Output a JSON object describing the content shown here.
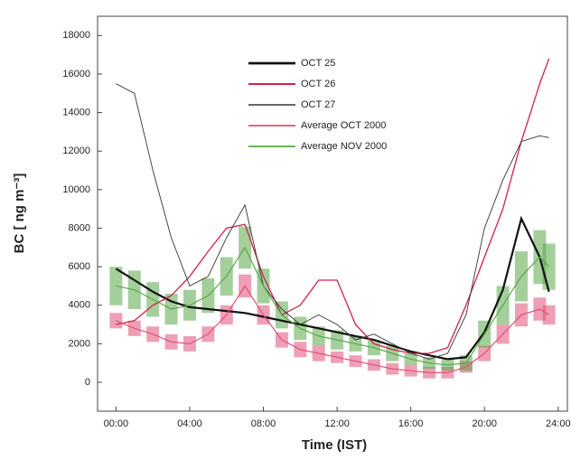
{
  "chart_data": {
    "type": "line",
    "x_label": "Time (IST)",
    "y_label": "BC [ ng m⁻³]",
    "x": [
      0,
      1,
      2,
      3,
      4,
      5,
      6,
      7,
      8,
      9,
      10,
      11,
      12,
      13,
      14,
      15,
      16,
      17,
      18,
      19,
      20,
      21,
      22,
      23,
      23.5
    ],
    "xlim": [
      -1,
      24.5
    ],
    "ylim": [
      -1500,
      19000
    ],
    "xticks": [
      {
        "value": 0,
        "label": "00:00"
      },
      {
        "value": 4,
        "label": "04:00"
      },
      {
        "value": 8,
        "label": "08:00"
      },
      {
        "value": 12,
        "label": "12:00"
      },
      {
        "value": 16,
        "label": "16:00"
      },
      {
        "value": 20,
        "label": "20:00"
      },
      {
        "value": 24,
        "label": "24:00"
      }
    ],
    "yticks": [
      0,
      2000,
      4000,
      6000,
      8000,
      10000,
      12000,
      14000,
      16000,
      18000
    ],
    "legend": "top-center",
    "series": [
      {
        "name": "OCT 25",
        "color": "#111111",
        "width": 2.2,
        "values": [
          5900,
          5300,
          4700,
          4200,
          3900,
          3800,
          3700,
          3600,
          3400,
          3200,
          3000,
          2800,
          2600,
          2400,
          2200,
          1900,
          1600,
          1400,
          1200,
          1300,
          2600,
          4800,
          8500,
          6500,
          4700
        ]
      },
      {
        "name": "OCT 26",
        "color": "#d0204a",
        "width": 1.3,
        "values": [
          3000,
          3200,
          4000,
          4500,
          5500,
          6800,
          8000,
          8200,
          5500,
          3500,
          4000,
          5300,
          5300,
          3000,
          2000,
          1700,
          1500,
          1500,
          1800,
          4000,
          6500,
          9000,
          12500,
          15500,
          16800
        ]
      },
      {
        "name": "OCT 27",
        "color": "#333333",
        "width": 0.9,
        "values": [
          15500,
          15000,
          11000,
          7500,
          5000,
          5500,
          7500,
          9200,
          5000,
          3800,
          3000,
          3500,
          3000,
          2200,
          2500,
          2000,
          1500,
          1200,
          1500,
          3500,
          8000,
          10500,
          12500,
          12800,
          12700
        ]
      },
      {
        "name": "Average OCT 2000",
        "color": "#e0507a",
        "width": 1.2,
        "values": [
          3200,
          2800,
          2500,
          2100,
          2000,
          2500,
          3500,
          5000,
          3500,
          2200,
          1700,
          1500,
          1300,
          1100,
          900,
          700,
          600,
          500,
          500,
          800,
          1500,
          2500,
          3500,
          3800,
          3500
        ],
        "errors": [
          400,
          400,
          400,
          400,
          400,
          400,
          500,
          600,
          500,
          400,
          400,
          400,
          300,
          300,
          300,
          300,
          300,
          300,
          300,
          300,
          400,
          500,
          600,
          600,
          500
        ]
      },
      {
        "name": "Average NOV 2000",
        "color": "#5aa848",
        "width": 1.2,
        "values": [
          5000,
          4800,
          4300,
          3800,
          4000,
          4500,
          5500,
          7000,
          5000,
          3500,
          2800,
          2400,
          2200,
          2000,
          1800,
          1500,
          1200,
          1000,
          900,
          1000,
          2500,
          4000,
          5500,
          6500,
          6000
        ],
        "errors": [
          1000,
          1000,
          900,
          800,
          800,
          900,
          1000,
          1100,
          900,
          700,
          600,
          500,
          500,
          400,
          400,
          400,
          300,
          300,
          300,
          400,
          700,
          1000,
          1300,
          1400,
          1200
        ]
      }
    ]
  }
}
